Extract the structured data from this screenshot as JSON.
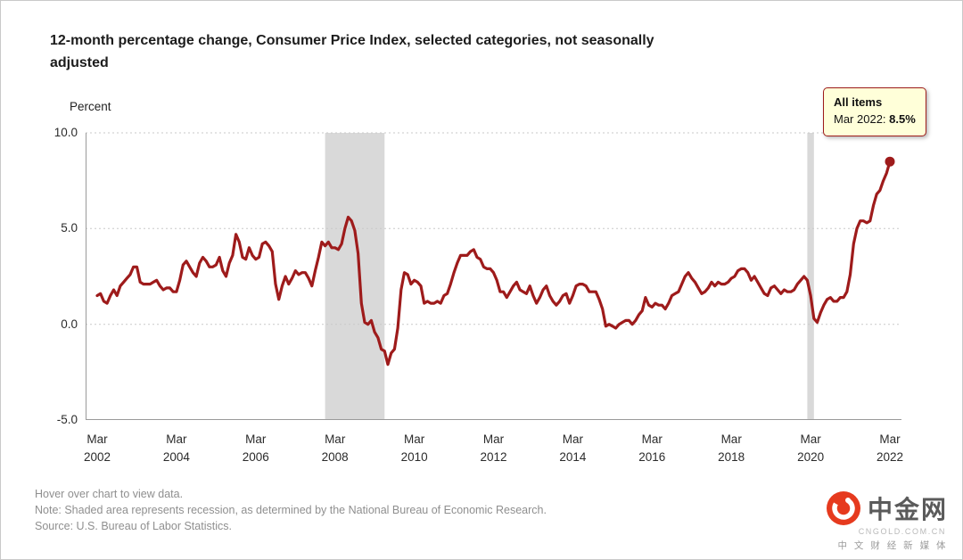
{
  "title": "12-month percentage change, Consumer Price Index, selected categories, not seasonally\nadjusted",
  "y_axis_label": "Percent",
  "tooltip": {
    "series": "All items",
    "label": "Mar 2022: ",
    "value": "8.5%"
  },
  "footer": {
    "lines": [
      "Hover over chart to view data.",
      "Note: Shaded area represents recession, as determined by the National Bureau of Economic Research.",
      "Source: U.S. Bureau of Labor Statistics."
    ]
  },
  "logo": {
    "name": "中金网",
    "domain": "CNGOLD.COM.CN",
    "tagline": "中 文 财 经 新 媒 体",
    "brand_color": "#e63a1e"
  },
  "chart_data": {
    "type": "line",
    "title": "12-month percentage change, Consumer Price Index, selected categories, not seasonally adjusted",
    "series_name": "All items",
    "ylabel": "Percent",
    "x_start": "Mar 2002",
    "x_end": "Mar 2022",
    "frequency": "monthly",
    "y_min": -5,
    "y_max": 10,
    "grid": "horizontal-dotted",
    "line_color": "#9e1b1b",
    "recession_color": "#d9d9d9",
    "recessions": [
      {
        "from": 69,
        "to": 87,
        "label": "Dec 2007 - Jun 2009"
      },
      {
        "from": 215,
        "to": 217,
        "label": "Feb 2020 - Apr 2020"
      }
    ],
    "y_ticks": [
      {
        "label": "10.0",
        "value": 10
      },
      {
        "label": "5.0",
        "value": 5
      },
      {
        "label": "0.0",
        "value": 0
      },
      {
        "label": "-5.0",
        "value": -5
      }
    ],
    "x_ticks": [
      {
        "line1": "Mar",
        "line2": "2002",
        "index": 0
      },
      {
        "line1": "Mar",
        "line2": "2004",
        "index": 24
      },
      {
        "line1": "Mar",
        "line2": "2006",
        "index": 48
      },
      {
        "line1": "Mar",
        "line2": "2008",
        "index": 72
      },
      {
        "line1": "Mar",
        "line2": "2010",
        "index": 96
      },
      {
        "line1": "Mar",
        "line2": "2012",
        "index": 120
      },
      {
        "line1": "Mar",
        "line2": "2014",
        "index": 144
      },
      {
        "line1": "Mar",
        "line2": "2016",
        "index": 168
      },
      {
        "line1": "Mar",
        "line2": "2018",
        "index": 192
      },
      {
        "line1": "Mar",
        "line2": "2020",
        "index": 216
      },
      {
        "line1": "Mar",
        "line2": "2022",
        "index": 240
      }
    ],
    "values": [
      1.5,
      1.6,
      1.2,
      1.1,
      1.5,
      1.8,
      1.5,
      2.0,
      2.2,
      2.4,
      2.6,
      3.0,
      3.0,
      2.2,
      2.1,
      2.1,
      2.1,
      2.2,
      2.3,
      2.0,
      1.8,
      1.9,
      1.9,
      1.7,
      1.7,
      2.3,
      3.1,
      3.3,
      3.0,
      2.7,
      2.5,
      3.2,
      3.5,
      3.3,
      3.0,
      3.0,
      3.1,
      3.5,
      2.8,
      2.5,
      3.2,
      3.6,
      4.7,
      4.3,
      3.5,
      3.4,
      4.0,
      3.6,
      3.4,
      3.5,
      4.2,
      4.3,
      4.1,
      3.8,
      2.1,
      1.3,
      2.0,
      2.5,
      2.1,
      2.4,
      2.8,
      2.6,
      2.7,
      2.7,
      2.4,
      2.0,
      2.8,
      3.5,
      4.3,
      4.1,
      4.3,
      4.0,
      4.0,
      3.9,
      4.2,
      5.0,
      5.6,
      5.4,
      4.9,
      3.7,
      1.1,
      0.1,
      0.0,
      0.2,
      -0.4,
      -0.7,
      -1.3,
      -1.4,
      -2.1,
      -1.5,
      -1.3,
      -0.2,
      1.8,
      2.7,
      2.6,
      2.1,
      2.3,
      2.2,
      2.0,
      1.1,
      1.2,
      1.1,
      1.1,
      1.2,
      1.1,
      1.5,
      1.6,
      2.1,
      2.7,
      3.2,
      3.6,
      3.6,
      3.6,
      3.8,
      3.9,
      3.5,
      3.4,
      3.0,
      2.9,
      2.9,
      2.7,
      2.3,
      1.7,
      1.7,
      1.4,
      1.7,
      2.0,
      2.2,
      1.8,
      1.7,
      1.6,
      2.0,
      1.5,
      1.1,
      1.4,
      1.8,
      2.0,
      1.5,
      1.2,
      1.0,
      1.2,
      1.5,
      1.6,
      1.1,
      1.5,
      2.0,
      2.1,
      2.1,
      2.0,
      1.7,
      1.7,
      1.7,
      1.3,
      0.8,
      -0.1,
      0.0,
      -0.1,
      -0.2,
      0.0,
      0.1,
      0.2,
      0.2,
      0.0,
      0.2,
      0.5,
      0.7,
      1.4,
      1.0,
      0.9,
      1.1,
      1.0,
      1.0,
      0.8,
      1.1,
      1.5,
      1.6,
      1.7,
      2.1,
      2.5,
      2.7,
      2.4,
      2.2,
      1.9,
      1.6,
      1.7,
      1.9,
      2.2,
      2.0,
      2.2,
      2.1,
      2.1,
      2.2,
      2.4,
      2.5,
      2.8,
      2.9,
      2.9,
      2.7,
      2.3,
      2.5,
      2.2,
      1.9,
      1.6,
      1.5,
      1.9,
      2.0,
      1.8,
      1.6,
      1.8,
      1.7,
      1.7,
      1.8,
      2.1,
      2.3,
      2.5,
      2.3,
      1.5,
      0.3,
      0.1,
      0.6,
      1.0,
      1.3,
      1.4,
      1.2,
      1.2,
      1.4,
      1.4,
      1.7,
      2.6,
      4.2,
      5.0,
      5.4,
      5.4,
      5.3,
      5.4,
      6.2,
      6.8,
      7.0,
      7.5,
      7.9,
      8.5
    ]
  }
}
